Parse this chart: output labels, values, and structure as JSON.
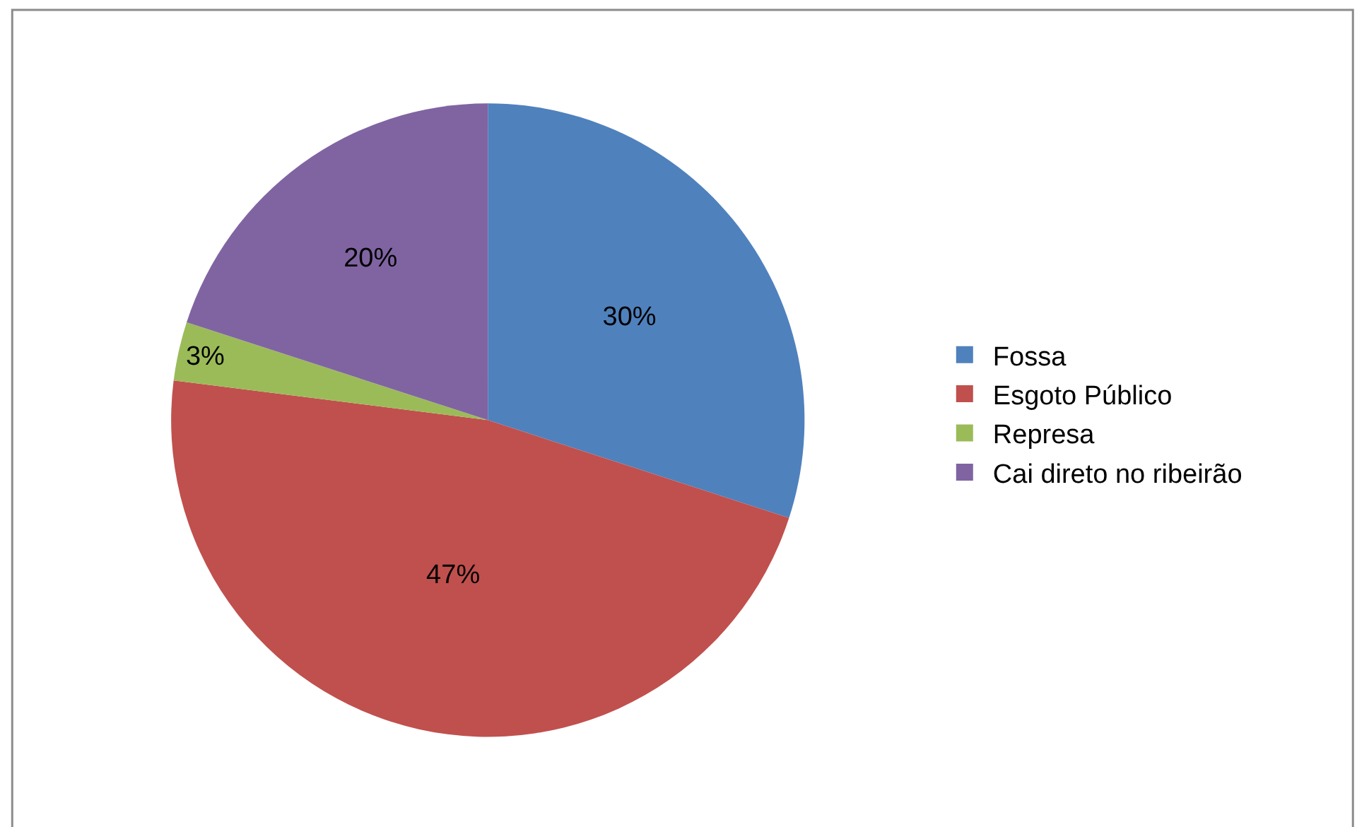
{
  "chart_data": {
    "type": "pie",
    "categories": [
      "Fossa",
      "Esgoto Público",
      "Represa",
      "Cai direto no ribeirão"
    ],
    "values": [
      30,
      47,
      3,
      20
    ],
    "colors": [
      "#4f81bd",
      "#c0504d",
      "#9bbb59",
      "#8064a2"
    ],
    "value_labels": [
      "30%",
      "47%",
      "3%",
      "20%"
    ],
    "legend": "right"
  }
}
